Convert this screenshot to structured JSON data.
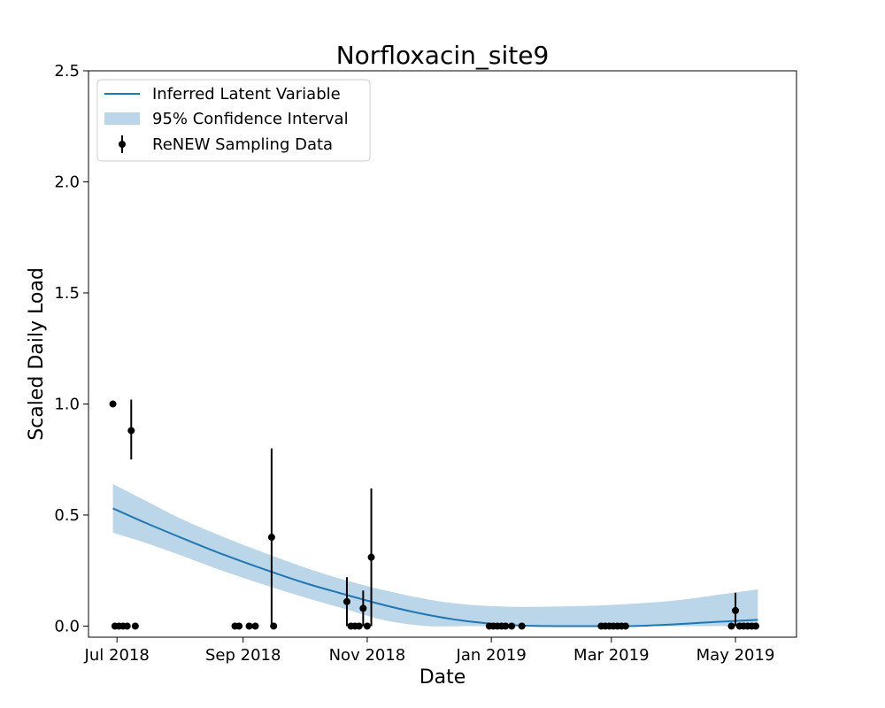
{
  "chart_data": {
    "type": "line",
    "title": "Norfloxacin_site9",
    "xlabel": "Date",
    "ylabel": "Scaled Daily Load",
    "x_axis_type": "date",
    "xlim": [
      "2018-06-17",
      "2019-05-31"
    ],
    "ylim": [
      -0.05,
      2.5
    ],
    "xticks": [
      {
        "date": "2018-07-01",
        "label": "Jul 2018"
      },
      {
        "date": "2018-09-01",
        "label": "Sep 2018"
      },
      {
        "date": "2018-11-01",
        "label": "Nov 2018"
      },
      {
        "date": "2019-01-01",
        "label": "Jan 2019"
      },
      {
        "date": "2019-03-01",
        "label": "Mar 2019"
      },
      {
        "date": "2019-05-01",
        "label": "May 2019"
      }
    ],
    "yticks": [
      {
        "value": 0.0,
        "label": "0.0"
      },
      {
        "value": 0.5,
        "label": "0.5"
      },
      {
        "value": 1.0,
        "label": "1.0"
      },
      {
        "value": 1.5,
        "label": "1.5"
      },
      {
        "value": 2.0,
        "label": "2.0"
      },
      {
        "value": 2.5,
        "label": "2.5"
      }
    ],
    "grid": false,
    "legend": {
      "placement": "top-left",
      "entries": [
        {
          "label": "Inferred Latent Variable",
          "kind": "line"
        },
        {
          "label": "95% Confidence Interval",
          "kind": "band"
        },
        {
          "label": "ReNEW Sampling Data",
          "kind": "errorbar"
        }
      ]
    },
    "colors": {
      "line": "#1f77b4",
      "band": "#1f77b4",
      "band_opacity": 0.3,
      "points": "#000000"
    },
    "latent_curve": [
      {
        "x": "2018-06-29",
        "y": 0.53,
        "lo": 0.42,
        "hi": 0.64
      },
      {
        "x": "2018-07-15",
        "y": 0.465,
        "lo": 0.375,
        "hi": 0.565
      },
      {
        "x": "2018-08-01",
        "y": 0.4,
        "lo": 0.32,
        "hi": 0.485
      },
      {
        "x": "2018-08-20",
        "y": 0.33,
        "lo": 0.255,
        "hi": 0.41
      },
      {
        "x": "2018-09-10",
        "y": 0.26,
        "lo": 0.19,
        "hi": 0.335
      },
      {
        "x": "2018-10-01",
        "y": 0.195,
        "lo": 0.13,
        "hi": 0.265
      },
      {
        "x": "2018-10-20",
        "y": 0.145,
        "lo": 0.08,
        "hi": 0.21
      },
      {
        "x": "2018-11-10",
        "y": 0.093,
        "lo": 0.025,
        "hi": 0.16
      },
      {
        "x": "2018-12-01",
        "y": 0.05,
        "lo": 0.0,
        "hi": 0.12
      },
      {
        "x": "2018-12-20",
        "y": 0.022,
        "lo": 0.0,
        "hi": 0.097
      },
      {
        "x": "2019-01-10",
        "y": 0.005,
        "lo": 0.0,
        "hi": 0.087
      },
      {
        "x": "2019-02-01",
        "y": 0.0,
        "lo": 0.0,
        "hi": 0.088
      },
      {
        "x": "2019-02-20",
        "y": 0.0,
        "lo": 0.0,
        "hi": 0.092
      },
      {
        "x": "2019-03-10",
        "y": 0.0,
        "lo": 0.0,
        "hi": 0.1
      },
      {
        "x": "2019-04-01",
        "y": 0.008,
        "lo": 0.0,
        "hi": 0.115
      },
      {
        "x": "2019-04-20",
        "y": 0.018,
        "lo": 0.0,
        "hi": 0.138
      },
      {
        "x": "2019-05-12",
        "y": 0.028,
        "lo": 0.0,
        "hi": 0.165
      }
    ],
    "samples": [
      {
        "x": "2018-06-29",
        "y": 1.0,
        "err_lo": 0.99,
        "err_hi": 1.01
      },
      {
        "x": "2018-06-30",
        "y": 0.0
      },
      {
        "x": "2018-07-02",
        "y": 0.0
      },
      {
        "x": "2018-07-04",
        "y": 0.0
      },
      {
        "x": "2018-07-06",
        "y": 0.0
      },
      {
        "x": "2018-07-08",
        "y": 0.88,
        "err_lo": 0.75,
        "err_hi": 1.02
      },
      {
        "x": "2018-07-10",
        "y": 0.0
      },
      {
        "x": "2018-08-28",
        "y": 0.0
      },
      {
        "x": "2018-08-30",
        "y": 0.0
      },
      {
        "x": "2018-09-04",
        "y": 0.0
      },
      {
        "x": "2018-09-07",
        "y": 0.0
      },
      {
        "x": "2018-09-15",
        "y": 0.4,
        "err_lo": 0.0,
        "err_hi": 0.8
      },
      {
        "x": "2018-09-16",
        "y": 0.0
      },
      {
        "x": "2018-10-22",
        "y": 0.11,
        "err_lo": 0.0,
        "err_hi": 0.22
      },
      {
        "x": "2018-10-24",
        "y": 0.0
      },
      {
        "x": "2018-10-26",
        "y": 0.0
      },
      {
        "x": "2018-10-28",
        "y": 0.0
      },
      {
        "x": "2018-10-30",
        "y": 0.08,
        "err_lo": 0.0,
        "err_hi": 0.16
      },
      {
        "x": "2018-11-01",
        "y": 0.0
      },
      {
        "x": "2018-11-03",
        "y": 0.31,
        "err_lo": 0.0,
        "err_hi": 0.62
      },
      {
        "x": "2018-12-31",
        "y": 0.0
      },
      {
        "x": "2019-01-02",
        "y": 0.0
      },
      {
        "x": "2019-01-04",
        "y": 0.0
      },
      {
        "x": "2019-01-06",
        "y": 0.0
      },
      {
        "x": "2019-01-08",
        "y": 0.0
      },
      {
        "x": "2019-01-11",
        "y": 0.0
      },
      {
        "x": "2019-01-16",
        "y": 0.0
      },
      {
        "x": "2019-02-24",
        "y": 0.0
      },
      {
        "x": "2019-02-26",
        "y": 0.0
      },
      {
        "x": "2019-02-28",
        "y": 0.0
      },
      {
        "x": "2019-03-02",
        "y": 0.0
      },
      {
        "x": "2019-03-04",
        "y": 0.0
      },
      {
        "x": "2019-03-06",
        "y": 0.0
      },
      {
        "x": "2019-03-08",
        "y": 0.0
      },
      {
        "x": "2019-04-29",
        "y": 0.0
      },
      {
        "x": "2019-05-01",
        "y": 0.07,
        "err_lo": 0.0,
        "err_hi": 0.15
      },
      {
        "x": "2019-05-03",
        "y": 0.0
      },
      {
        "x": "2019-05-05",
        "y": 0.0
      },
      {
        "x": "2019-05-07",
        "y": 0.0
      },
      {
        "x": "2019-05-09",
        "y": 0.0
      },
      {
        "x": "2019-05-11",
        "y": 0.0
      }
    ]
  }
}
